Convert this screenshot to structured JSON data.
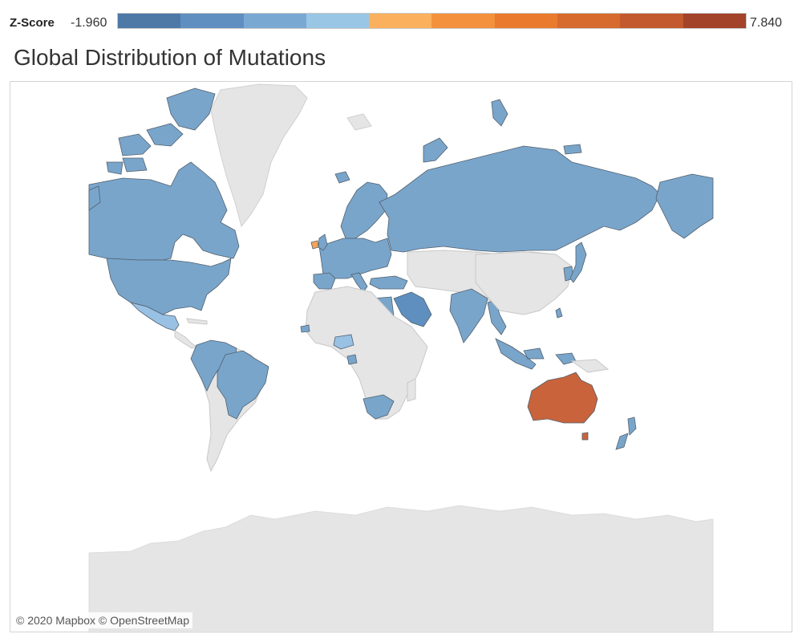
{
  "legend": {
    "title": "Z-Score",
    "min_label": "-1.960",
    "max_label": "7.840",
    "min": -1.96,
    "max": 7.84,
    "steps": [
      "#4e79a7",
      "#5f8fc0",
      "#79a9d3",
      "#98c6e4",
      "#fbb05e",
      "#f4913d",
      "#ea7a2e",
      "#d76a2d",
      "#c3592f",
      "#a2432a"
    ]
  },
  "title": "Global Distribution of Mutations",
  "attribution": "© 2020 Mapbox © OpenStreetMap",
  "map": {
    "projection": "mercator",
    "base_color": "#e5e5e5",
    "regions": [
      {
        "name": "Canada",
        "level": "blue"
      },
      {
        "name": "United States",
        "level": "blue"
      },
      {
        "name": "Mexico",
        "level": "light-blue"
      },
      {
        "name": "Greenland",
        "level": "none"
      },
      {
        "name": "Guatemala",
        "level": "blue"
      },
      {
        "name": "Colombia",
        "level": "blue"
      },
      {
        "name": "Venezuela",
        "level": "blue"
      },
      {
        "name": "Ecuador",
        "level": "blue"
      },
      {
        "name": "Peru",
        "level": "blue"
      },
      {
        "name": "Brazil",
        "level": "blue"
      },
      {
        "name": "Suriname",
        "level": "blue"
      },
      {
        "name": "Iceland",
        "level": "blue"
      },
      {
        "name": "Ireland",
        "level": "orange"
      },
      {
        "name": "United Kingdom",
        "level": "blue"
      },
      {
        "name": "Norway",
        "level": "blue"
      },
      {
        "name": "Sweden",
        "level": "blue"
      },
      {
        "name": "Finland",
        "level": "blue"
      },
      {
        "name": "Spain",
        "level": "blue"
      },
      {
        "name": "France",
        "level": "blue"
      },
      {
        "name": "Germany",
        "level": "blue"
      },
      {
        "name": "Italy",
        "level": "blue"
      },
      {
        "name": "Poland",
        "level": "blue"
      },
      {
        "name": "Turkey",
        "level": "blue"
      },
      {
        "name": "Russia",
        "level": "blue"
      },
      {
        "name": "Georgia",
        "level": "blue"
      },
      {
        "name": "Algeria",
        "level": "light-blue"
      },
      {
        "name": "Egypt",
        "level": "blue"
      },
      {
        "name": "Saudi Arabia",
        "level": "dark-blue"
      },
      {
        "name": "Senegal",
        "level": "blue"
      },
      {
        "name": "Nigeria",
        "level": "light-blue"
      },
      {
        "name": "Gabon",
        "level": "blue"
      },
      {
        "name": "South Africa",
        "level": "blue"
      },
      {
        "name": "India",
        "level": "blue"
      },
      {
        "name": "Bangladesh",
        "level": "blue"
      },
      {
        "name": "Thailand",
        "level": "blue"
      },
      {
        "name": "Malaysia",
        "level": "blue"
      },
      {
        "name": "Indonesia",
        "level": "blue"
      },
      {
        "name": "Taiwan",
        "level": "blue"
      },
      {
        "name": "South Korea",
        "level": "blue"
      },
      {
        "name": "Japan",
        "level": "blue"
      },
      {
        "name": "Australia",
        "level": "dark-orange"
      },
      {
        "name": "New Zealand",
        "level": "blue"
      }
    ]
  }
}
